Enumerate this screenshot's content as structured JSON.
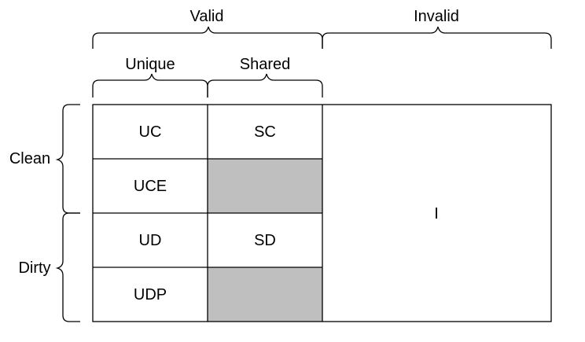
{
  "headers": {
    "valid": "Valid",
    "invalid": "Invalid",
    "unique": "Unique",
    "shared": "Shared",
    "clean": "Clean",
    "dirty": "Dirty"
  },
  "cells": {
    "uc": "UC",
    "sc": "SC",
    "uce": "UCE",
    "ud": "UD",
    "sd": "SD",
    "udp": "UDP",
    "i": "I"
  },
  "colors": {
    "empty_cell": "#bfbfbf",
    "line": "#000000",
    "background": "#ffffff"
  }
}
